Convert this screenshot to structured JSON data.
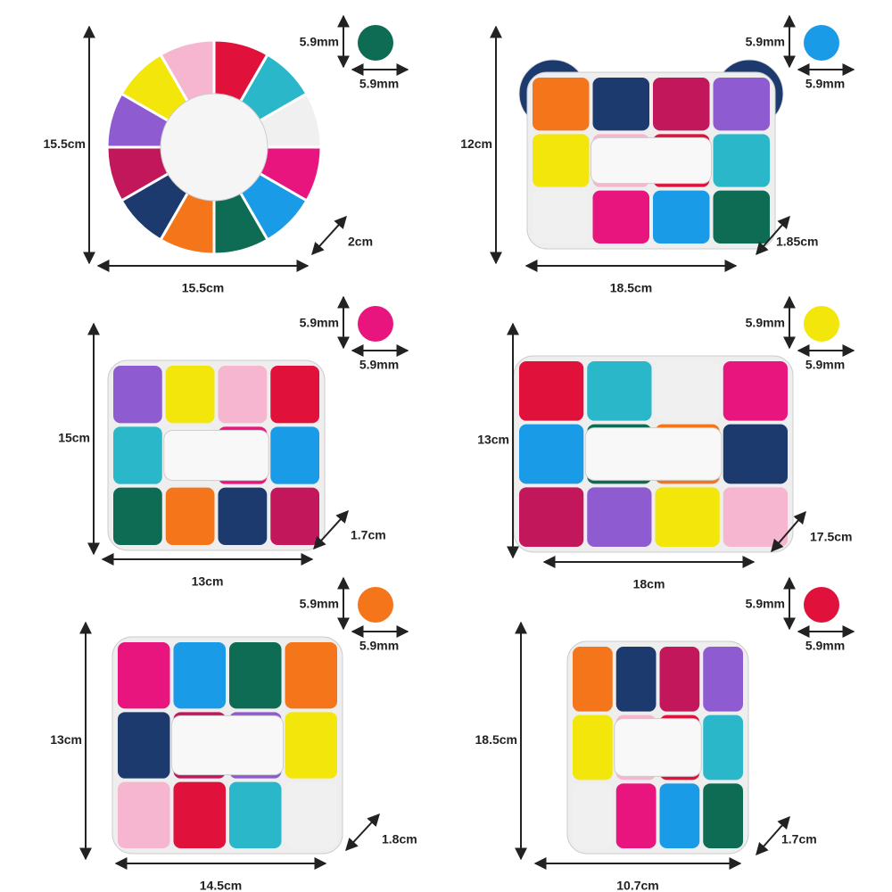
{
  "panels": [
    {
      "height": "15.5cm",
      "width": "15.5cm",
      "depth": "2cm",
      "bead_height": "5.9mm",
      "bead_width": "5.9mm",
      "bead_color": "#0e6b54"
    },
    {
      "height": "12cm",
      "width": "18.5cm",
      "depth": "1.85cm",
      "bead_height": "5.9mm",
      "bead_width": "5.9mm",
      "bead_color": "#1a9be8"
    },
    {
      "height": "15cm",
      "width": "13cm",
      "depth": "1.7cm",
      "bead_height": "5.9mm",
      "bead_width": "5.9mm",
      "bead_color": "#e8157f"
    },
    {
      "height": "13cm",
      "width": "18cm",
      "depth": "17.5cm",
      "bead_height": "5.9mm",
      "bead_width": "5.9mm",
      "bead_color": "#f2e60a"
    },
    {
      "height": "13cm",
      "width": "14.5cm",
      "depth": "1.8cm",
      "bead_height": "5.9mm",
      "bead_width": "5.9mm",
      "bead_color": "#f4751a"
    },
    {
      "height": "18.5cm",
      "width": "10.7cm",
      "depth": "1.7cm",
      "bead_height": "5.9mm",
      "bead_width": "5.9mm",
      "bead_color": "#e0123c"
    }
  ]
}
